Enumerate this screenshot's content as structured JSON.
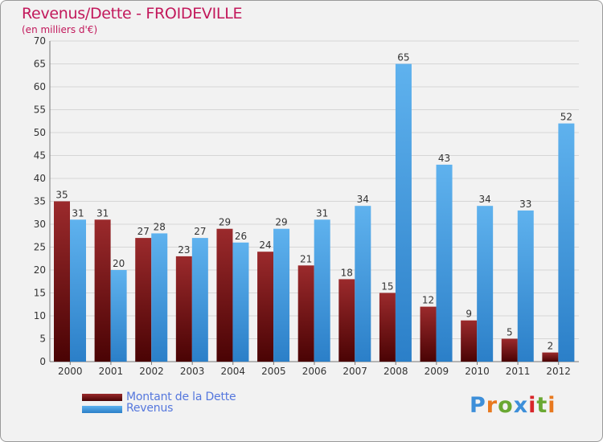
{
  "colors": {
    "dette": "#7a1214",
    "revenus": "#3f9be0",
    "title": "#c2185b",
    "legend_text": "#5577dd"
  },
  "logo": {
    "text": "Proxiti"
  },
  "chart_data": {
    "type": "bar",
    "title": "Revenus/Dette - FROIDEVILLE",
    "subtitle": "(en milliers d'€)",
    "xlabel": "",
    "ylabel": "",
    "ylim": [
      0,
      70
    ],
    "yticks": [
      0,
      5,
      10,
      15,
      20,
      25,
      30,
      35,
      40,
      45,
      50,
      55,
      60,
      65,
      70
    ],
    "grid": true,
    "categories": [
      "2000",
      "2001",
      "2002",
      "2003",
      "2004",
      "2005",
      "2006",
      "2007",
      "2008",
      "2009",
      "2010",
      "2011",
      "2012"
    ],
    "series": [
      {
        "name": "Montant de la Dette",
        "values": [
          35,
          31,
          27,
          23,
          29,
          24,
          21,
          18,
          15,
          12,
          9,
          5,
          2
        ]
      },
      {
        "name": "Revenus",
        "values": [
          31,
          20,
          28,
          27,
          26,
          29,
          31,
          34,
          65,
          43,
          34,
          33,
          52
        ]
      }
    ],
    "legend_position": "bottom-left"
  }
}
